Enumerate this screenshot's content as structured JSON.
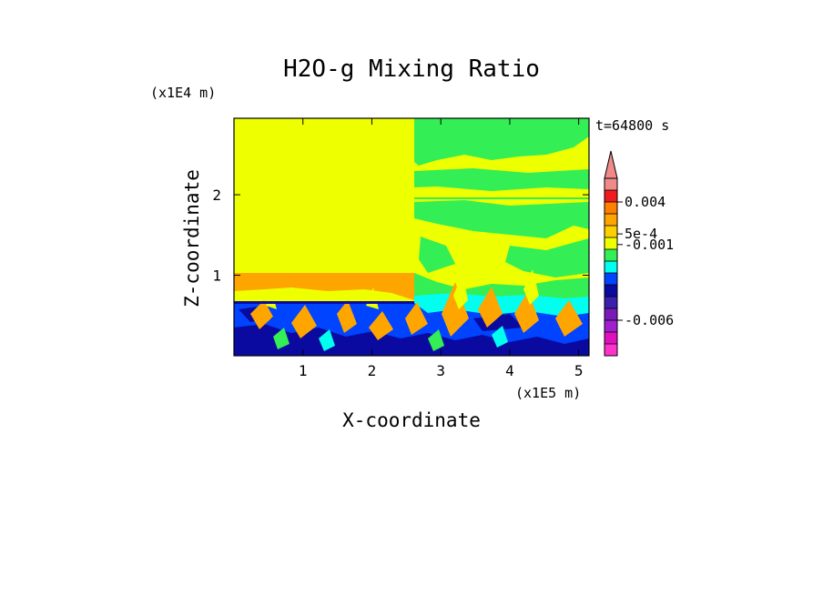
{
  "chart_data": {
    "type": "heatmap",
    "title": "H2O-g Mixing Ratio",
    "xlabel": "X-coordinate",
    "ylabel": "Z-coordinate",
    "x_scale_label": "(x1E5 m)",
    "y_scale_label": "(x1E4 m)",
    "time_label": "t=64800 s",
    "xlim": [
      0,
      5.15
    ],
    "ylim": [
      0,
      2.95
    ],
    "x_ticks": [
      {
        "value": 1,
        "label": "1"
      },
      {
        "value": 2,
        "label": "2"
      },
      {
        "value": 3,
        "label": "3"
      },
      {
        "value": 4,
        "label": "4"
      },
      {
        "value": 5,
        "label": "5"
      }
    ],
    "y_ticks": [
      {
        "value": 1,
        "label": "1"
      },
      {
        "value": 2,
        "label": "2"
      }
    ],
    "colorbar": {
      "extend": "max",
      "levels": [
        {
          "level": 9,
          "color": "#f08a8a"
        },
        {
          "level": 8,
          "color": "#ee1c1c"
        },
        {
          "level": 7,
          "color": "#ff7f00"
        },
        {
          "level": 6,
          "color": "#ffa500"
        },
        {
          "level": 5,
          "color": "#ffd000"
        },
        {
          "level": 4,
          "color": "#eeff00"
        },
        {
          "level": 3,
          "color": "#33ee55"
        },
        {
          "level": 2,
          "color": "#00ffee"
        },
        {
          "level": 1,
          "color": "#0044ff"
        },
        {
          "level": 0,
          "color": "#0a0aa0"
        },
        {
          "level": -1,
          "color": "#3a1fb0"
        },
        {
          "level": -2,
          "color": "#7a1ab8"
        },
        {
          "level": -3,
          "color": "#a020d0"
        },
        {
          "level": -4,
          "color": "#e010c0"
        },
        {
          "level": -5,
          "color": "#ff33cc"
        }
      ],
      "labels": [
        {
          "text": "0.004",
          "at_level": 7.5
        },
        {
          "text": "5e-4",
          "at_level": 4.8
        },
        {
          "text": "-0.001",
          "at_level": 3.9
        },
        {
          "text": "-0.006",
          "at_level": -2.5
        }
      ]
    },
    "regions": {
      "upper_left": {
        "x": [
          0,
          2.55
        ],
        "z": [
          0.72,
          2.95
        ],
        "color": "#eeff00"
      },
      "upper_right_banded": {
        "x": [
          2.55,
          5.15
        ],
        "z": [
          1.0,
          2.95
        ],
        "colors": [
          "#eeff00",
          "#33ee55"
        ]
      },
      "lower_turbulent": {
        "x": [
          0,
          5.15
        ],
        "z": [
          0,
          0.72
        ],
        "colors": [
          "#0a0aa0",
          "#0044ff",
          "#00ffee",
          "#33ee55",
          "#ffa500",
          "#eeff00"
        ]
      }
    }
  }
}
